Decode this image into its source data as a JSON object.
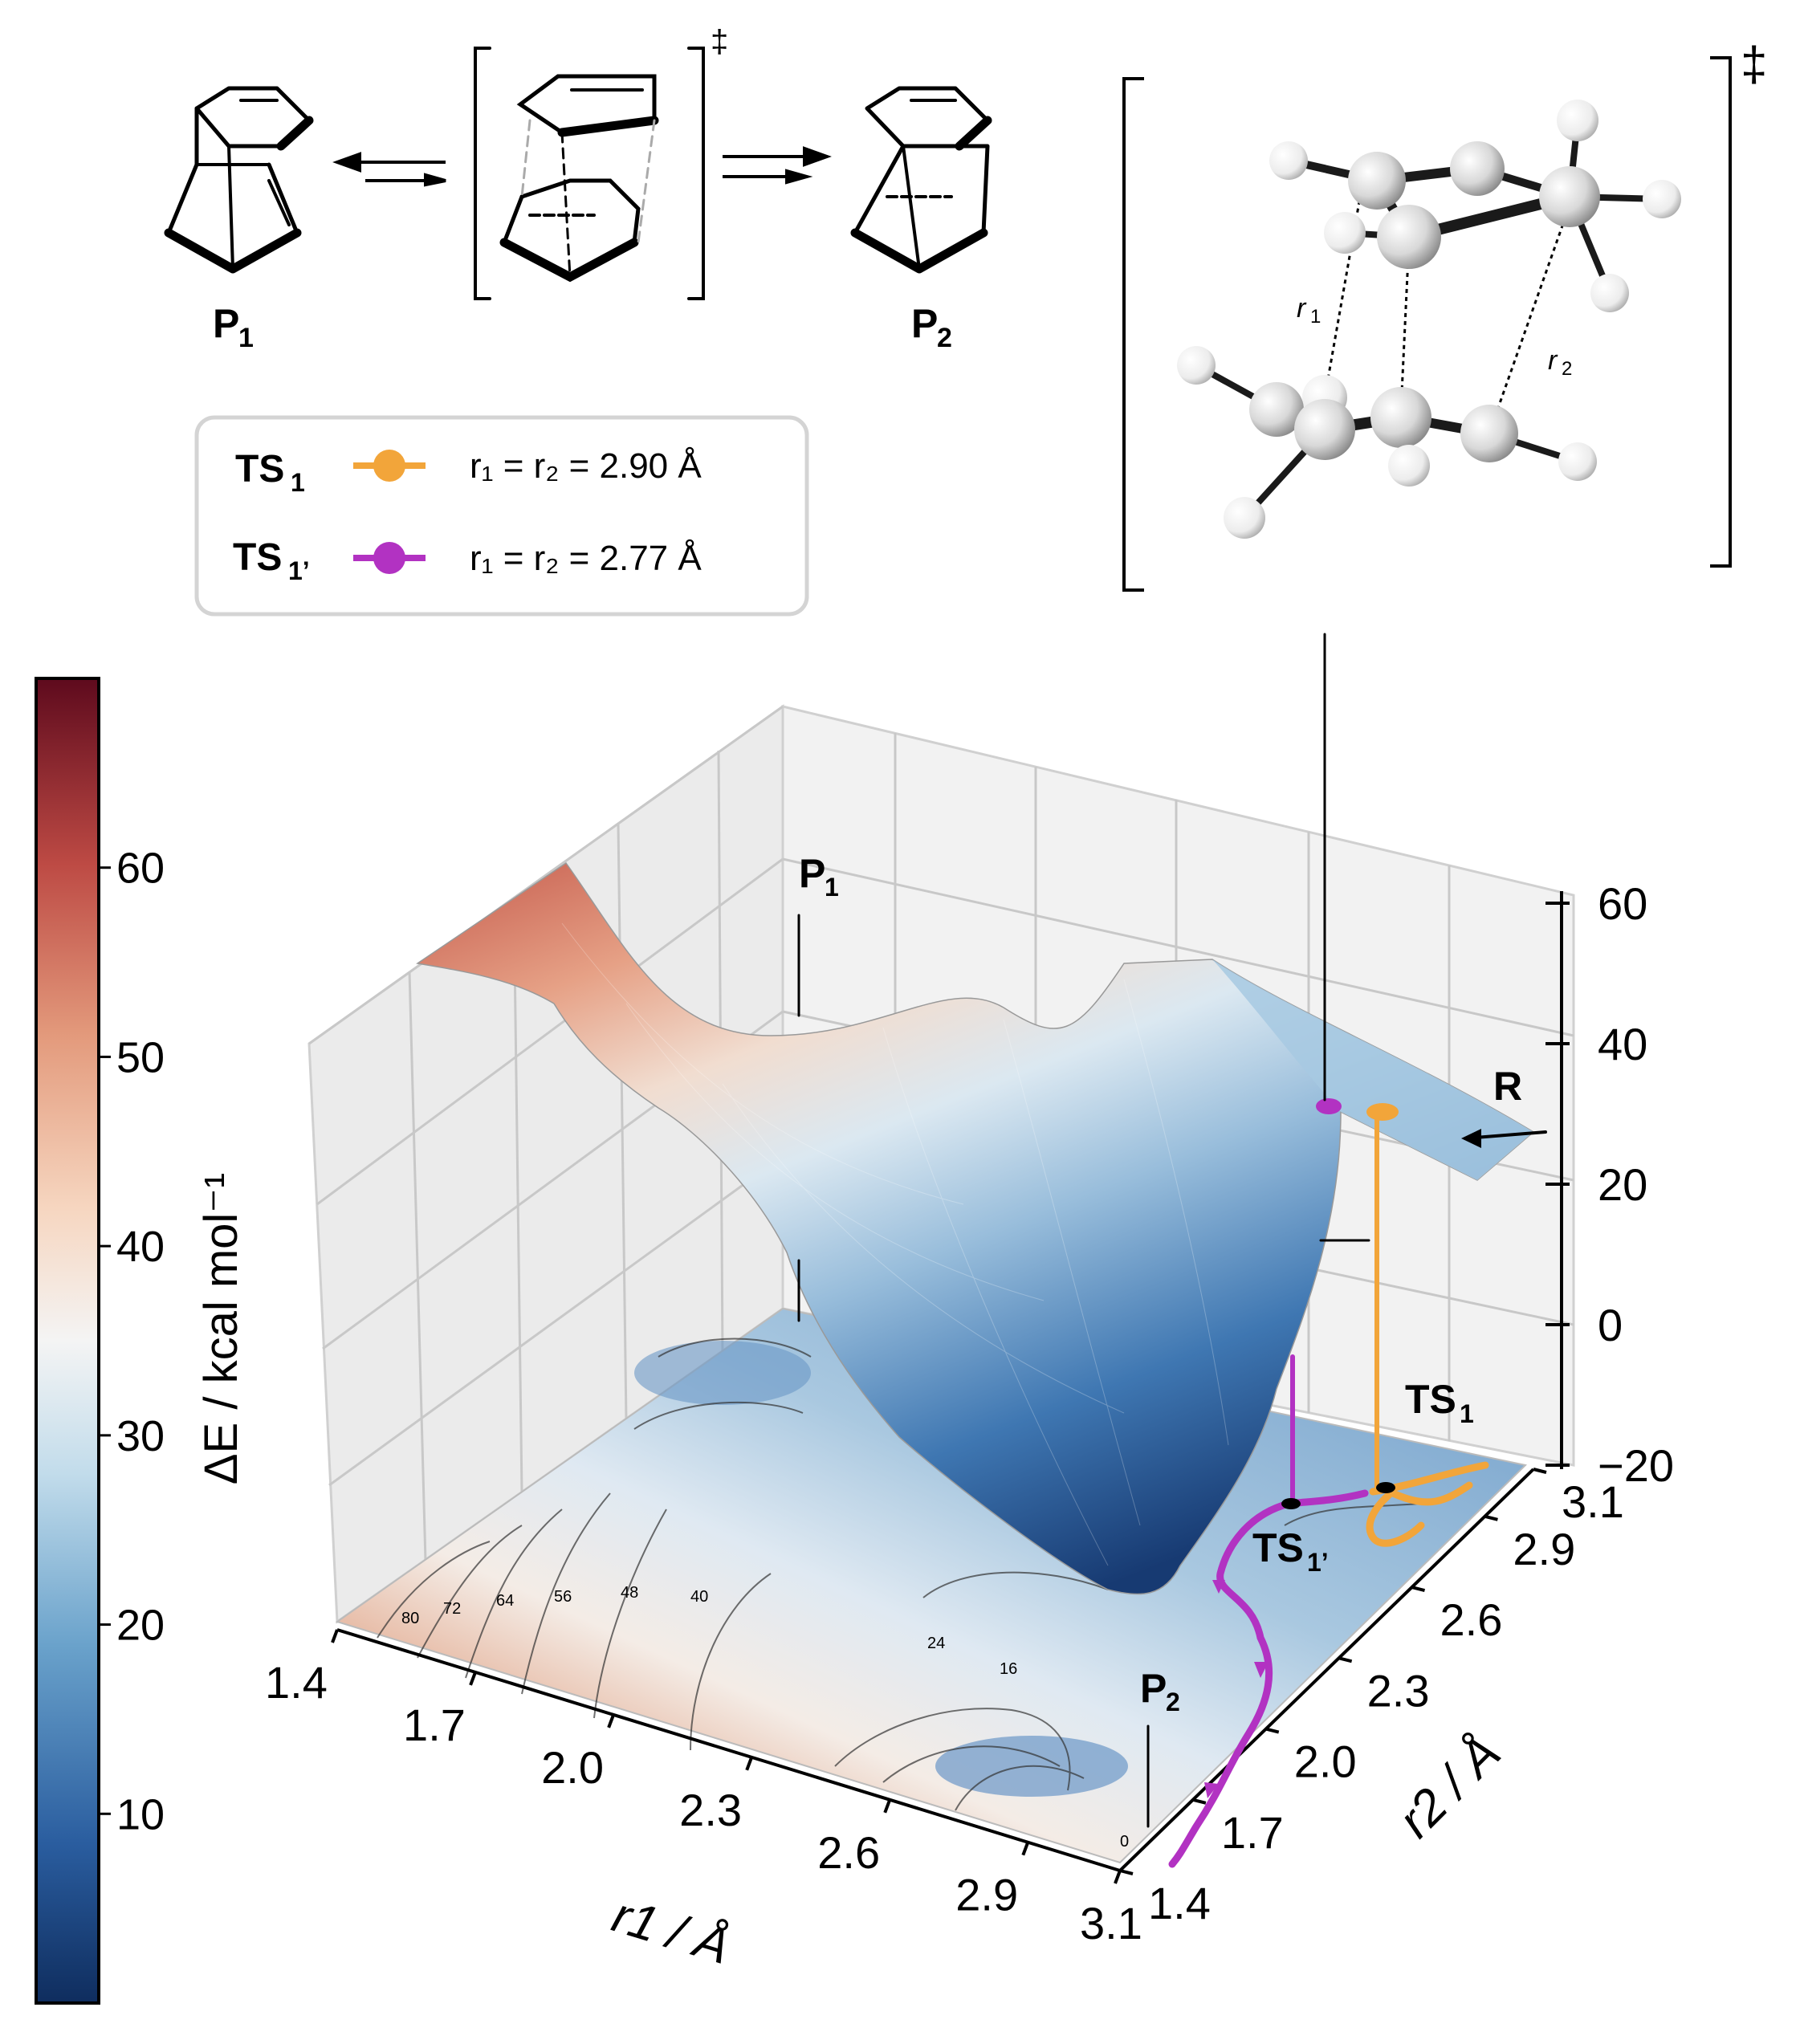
{
  "scheme": {
    "p1_label": "P",
    "p1_sub": "1",
    "p2_label": "P",
    "p2_sub": "2",
    "ts_mark": "‡"
  },
  "structure_3d": {
    "r1_label": "r",
    "r1_sub": "1",
    "r2_label": "r",
    "r2_sub": "2",
    "ts_mark": "‡"
  },
  "legend": {
    "ts1_label": "TS",
    "ts1_sub": "1",
    "ts1_color": "#F2A53A",
    "ts1_text": "r₁ = r₂ = 2.90 Å",
    "ts1p_label": "TS",
    "ts1p_sub": "1’",
    "ts1p_color": "#B232C2",
    "ts1p_text": "r₁ = r₂ = 2.77 Å"
  },
  "colorbar": {
    "label": "ΔE / kcal mol⁻¹",
    "ticks": [
      "60",
      "50",
      "40",
      "30",
      "20",
      "10"
    ],
    "tick_values": [
      60,
      50,
      40,
      30,
      20,
      10
    ],
    "range": [
      0,
      70
    ],
    "colormap": "RdBu_r"
  },
  "chart_data": {
    "type": "surface3d",
    "xlabel": "r1 / Å",
    "ylabel": "r2 / Å",
    "zlabel": "ΔE / kcal mol⁻¹",
    "x_ticks": [
      "1.4",
      "1.7",
      "2.0",
      "2.3",
      "2.6",
      "2.9",
      "3.1"
    ],
    "y_ticks": [
      "1.4",
      "1.7",
      "2.0",
      "2.3",
      "2.6",
      "2.9",
      "3.1"
    ],
    "z_ticks": [
      "60",
      "40",
      "20",
      "0",
      "−20"
    ],
    "xlim": [
      1.4,
      3.1
    ],
    "ylim": [
      1.4,
      3.1
    ],
    "zlim": [
      -20,
      60
    ],
    "contour_levels": [
      "80",
      "72",
      "64",
      "56",
      "48",
      "40",
      "24",
      "16",
      "16",
      "0"
    ],
    "points": [
      {
        "name": "P1",
        "label": "P",
        "sub": "1",
        "r1": 1.6,
        "r2": 3.1
      },
      {
        "name": "P2",
        "label": "P",
        "sub": "2",
        "r1": 3.1,
        "r2": 1.6
      },
      {
        "name": "R",
        "label": "R",
        "r1": 3.1,
        "r2": 3.1
      },
      {
        "name": "TS1",
        "label": "TS",
        "sub": "1",
        "r1": 2.9,
        "r2": 2.9
      },
      {
        "name": "TS1'",
        "label": "TS",
        "sub": "1’",
        "r1": 2.77,
        "r2": 2.77
      }
    ],
    "paths": [
      {
        "name": "TS1",
        "color": "#F2A53A"
      },
      {
        "name": "TS1'",
        "color": "#B232C2"
      }
    ],
    "grid": true
  }
}
